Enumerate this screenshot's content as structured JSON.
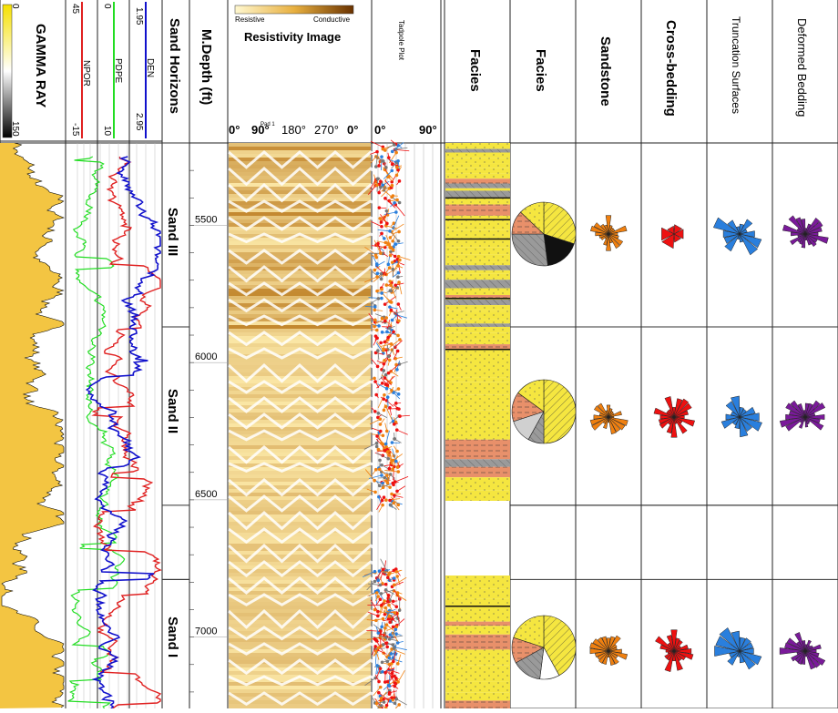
{
  "tracks": {
    "gamma": {
      "title": "GAMMA RAY",
      "min": "0",
      "max": "150"
    },
    "npor": {
      "title": "NPOR",
      "left": "45",
      "right": "-15"
    },
    "pdpe": {
      "title": "PDPE",
      "left": "0",
      "right": "10"
    },
    "den": {
      "title": "DEN",
      "left": "1.95",
      "right": "2.95"
    },
    "horizons": {
      "title": "Sand Horizons"
    },
    "depth": {
      "title": "M.Depth (ft)"
    },
    "resistivity": {
      "title": "Resistivity Image",
      "legend_left": "Resistive",
      "legend_right": "Conductive",
      "az_labels": [
        "0°",
        "90°",
        "180°",
        "270°",
        "0°"
      ],
      "subscript": "Pad 1"
    },
    "tadpole": {
      "title": "Tadpole Plot",
      "scale_left": "0°",
      "scale_right": "90°"
    },
    "facies_col": {
      "title": "Facies"
    },
    "facies_pie": {
      "title": "Facies"
    },
    "roses": [
      "Sandstone",
      "Cross-bedding",
      "Truncation Surfaces",
      "Deformed Bedding"
    ]
  },
  "chart_data": {
    "type": "line",
    "depth_axis": {
      "unit": "ft",
      "range": [
        5200,
        7260
      ],
      "ticks": [
        "5500",
        "6000",
        "6500",
        "7000"
      ]
    },
    "zones": [
      {
        "name": "Sand III",
        "top": 5200,
        "base": 5870
      },
      {
        "name": "Sand II",
        "top": 5870,
        "base": 6520
      },
      {
        "name": "Sand I",
        "top": 6790,
        "base": 7260
      }
    ],
    "logs": [
      {
        "name": "GAMMA RAY",
        "range": [
          0,
          150
        ],
        "color": "#000000"
      },
      {
        "name": "NPOR",
        "range": [
          45,
          -15
        ],
        "color": "#e02020"
      },
      {
        "name": "PDPE",
        "range": [
          0,
          10
        ],
        "color": "#22dd22"
      },
      {
        "name": "DEN",
        "range": [
          1.95,
          2.95
        ],
        "color": "#1010cc"
      }
    ],
    "colors": {
      "sand": "#f5e640",
      "shale": "#e8906a",
      "silt": "#9a9a9a",
      "image_dark": "#b86f10",
      "image_light": "#fbe7a6",
      "cross_bedding": "#ee1111",
      "truncation": "#2a7fdd",
      "deformed": "#7a1a9a",
      "sandstone": "#f08010"
    }
  }
}
